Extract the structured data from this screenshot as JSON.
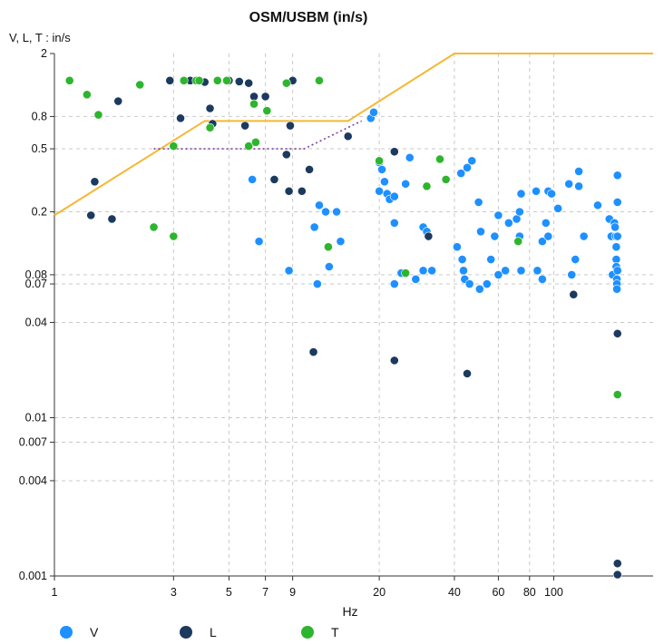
{
  "chart_data": {
    "type": "scatter",
    "title": "OSM/USBM (in/s)",
    "ylabel": "V, L, T : in/s",
    "xlabel": "Hz",
    "xscale": "log",
    "yscale": "log",
    "xlim": [
      1,
      250
    ],
    "ylim": [
      0.001,
      2
    ],
    "x_ticks": [
      1,
      3,
      5,
      7,
      9,
      20,
      40,
      60,
      80,
      100
    ],
    "x_tick_labels": [
      "1",
      "3",
      "5",
      "7",
      "9",
      "20",
      "40",
      "60",
      "80",
      "100"
    ],
    "y_ticks": [
      2,
      0.8,
      0.5,
      0.2,
      0.08,
      0.07,
      0.04,
      0.01,
      0.007,
      0.004,
      0.001
    ],
    "y_tick_labels": [
      "2",
      "0.8",
      "0.5",
      "0.2",
      "0.08",
      "0.07",
      "0.04",
      "0.01",
      "0.007",
      "0.004",
      "0.001"
    ],
    "grid": true,
    "legend_position": "bottom-left",
    "colors": {
      "V": "#1e90ff",
      "L": "#1c3a5e",
      "T": "#2db52d",
      "limit": "#f7b733",
      "limit_alt": "#7a3fa0"
    },
    "limit_line": {
      "name": "",
      "x": [
        1,
        4,
        15,
        40,
        250
      ],
      "y": [
        0.19,
        0.75,
        0.75,
        2.0,
        2.0
      ]
    },
    "limit_line_alt": {
      "name": "",
      "style": "dotted",
      "x": [
        2.5,
        10,
        17
      ],
      "y": [
        0.5,
        0.5,
        0.75
      ]
    },
    "series": [
      {
        "name": "V",
        "points": [
          [
            6.2,
            0.32
          ],
          [
            6.6,
            0.13
          ],
          [
            8.7,
            0.085
          ],
          [
            11.5,
            0.22
          ],
          [
            11.3,
            0.07
          ],
          [
            11.0,
            0.16
          ],
          [
            12.2,
            0.2
          ],
          [
            12.6,
            0.09
          ],
          [
            13.5,
            0.2
          ],
          [
            14.0,
            0.13
          ],
          [
            18.5,
            0.78
          ],
          [
            19.0,
            0.85
          ],
          [
            20.0,
            0.27
          ],
          [
            20.0,
            0.41
          ],
          [
            20.5,
            0.37
          ],
          [
            21.0,
            0.31
          ],
          [
            21.5,
            0.26
          ],
          [
            22.0,
            0.24
          ],
          [
            23.0,
            0.25
          ],
          [
            23.0,
            0.17
          ],
          [
            23.0,
            0.07
          ],
          [
            24.5,
            0.082
          ],
          [
            25.5,
            0.3
          ],
          [
            26.5,
            0.44
          ],
          [
            28.0,
            0.075
          ],
          [
            30.0,
            0.16
          ],
          [
            30.0,
            0.085
          ],
          [
            31.0,
            0.15
          ],
          [
            32.5,
            0.085
          ],
          [
            41.0,
            0.12
          ],
          [
            42.5,
            0.35
          ],
          [
            43.0,
            0.1
          ],
          [
            43.5,
            0.085
          ],
          [
            44.0,
            0.075
          ],
          [
            45.0,
            0.38
          ],
          [
            46.0,
            0.07
          ],
          [
            47.0,
            0.42
          ],
          [
            50.5,
            0.065
          ],
          [
            50.0,
            0.23
          ],
          [
            51.0,
            0.15
          ],
          [
            54.0,
            0.07
          ],
          [
            56.0,
            0.1
          ],
          [
            58.0,
            0.14
          ],
          [
            60.0,
            0.19
          ],
          [
            60.0,
            0.08
          ],
          [
            64.0,
            0.085
          ],
          [
            66.0,
            0.17
          ],
          [
            71.0,
            0.18
          ],
          [
            73.0,
            0.2
          ],
          [
            73.0,
            0.14
          ],
          [
            74.0,
            0.26
          ],
          [
            74.0,
            0.085
          ],
          [
            85.0,
            0.27
          ],
          [
            86.0,
            0.085
          ],
          [
            90.0,
            0.13
          ],
          [
            90.0,
            0.075
          ],
          [
            93.0,
            0.17
          ],
          [
            95.0,
            0.14
          ],
          [
            95.0,
            0.27
          ],
          [
            98.0,
            0.26
          ],
          [
            104.0,
            0.21
          ],
          [
            115.0,
            0.3
          ],
          [
            118.0,
            0.08
          ],
          [
            122.0,
            0.1
          ],
          [
            126.0,
            0.29
          ],
          [
            126.0,
            0.36
          ],
          [
            132.0,
            0.14
          ],
          [
            150.0,
            0.22
          ],
          [
            167.0,
            0.18
          ],
          [
            170.0,
            0.14
          ],
          [
            172.0,
            0.08
          ],
          [
            175.0,
            0.17
          ],
          [
            176.0,
            0.16
          ],
          [
            177.0,
            0.14
          ],
          [
            178.0,
            0.12
          ],
          [
            178.0,
            0.1
          ],
          [
            178.0,
            0.09
          ],
          [
            179.0,
            0.075
          ],
          [
            179.0,
            0.07
          ],
          [
            179.0,
            0.065
          ],
          [
            180.0,
            0.34
          ],
          [
            180.0,
            0.23
          ],
          [
            180.0,
            0.14
          ],
          [
            180.0,
            0.085
          ]
        ]
      },
      {
        "name": "L",
        "points": [
          [
            1.4,
            0.19
          ],
          [
            1.45,
            0.31
          ],
          [
            1.7,
            0.18
          ],
          [
            1.8,
            1.0
          ],
          [
            2.9,
            1.35
          ],
          [
            3.2,
            0.78
          ],
          [
            3.5,
            1.35
          ],
          [
            4.0,
            1.32
          ],
          [
            4.2,
            0.9
          ],
          [
            4.3,
            0.72
          ],
          [
            5.0,
            1.35
          ],
          [
            5.5,
            1.33
          ],
          [
            5.8,
            0.7
          ],
          [
            6.0,
            1.3
          ],
          [
            6.3,
            1.07
          ],
          [
            7.0,
            1.07
          ],
          [
            7.6,
            0.32
          ],
          [
            8.5,
            0.46
          ],
          [
            8.7,
            0.27
          ],
          [
            8.8,
            0.7
          ],
          [
            9.0,
            1.35
          ],
          [
            9.8,
            0.27
          ],
          [
            10.5,
            0.37
          ],
          [
            10.9,
            0.026
          ],
          [
            15.0,
            0.6
          ],
          [
            23.0,
            0.48
          ],
          [
            23.0,
            0.023
          ],
          [
            31.5,
            0.14
          ],
          [
            45.0,
            0.019
          ],
          [
            120.0,
            0.06
          ],
          [
            180.0,
            0.034
          ],
          [
            180.0,
            0.0012
          ],
          [
            180.0,
            0.00102
          ]
        ]
      },
      {
        "name": "T",
        "points": [
          [
            1.15,
            1.35
          ],
          [
            1.35,
            1.1
          ],
          [
            1.5,
            0.82
          ],
          [
            2.2,
            1.27
          ],
          [
            2.5,
            0.16
          ],
          [
            3.0,
            0.52
          ],
          [
            3.0,
            0.14
          ],
          [
            3.3,
            1.35
          ],
          [
            3.7,
            1.35
          ],
          [
            3.8,
            1.35
          ],
          [
            4.2,
            0.68
          ],
          [
            4.5,
            1.35
          ],
          [
            4.9,
            1.35
          ],
          [
            6.0,
            0.52
          ],
          [
            6.3,
            0.96
          ],
          [
            6.4,
            0.55
          ],
          [
            7.1,
            0.87
          ],
          [
            8.5,
            1.3
          ],
          [
            11.5,
            1.35
          ],
          [
            12.5,
            0.12
          ],
          [
            20.0,
            0.42
          ],
          [
            25.5,
            0.082
          ],
          [
            31.0,
            0.29
          ],
          [
            35.0,
            0.43
          ],
          [
            37.0,
            0.32
          ],
          [
            72.0,
            0.13
          ],
          [
            180.0,
            0.014
          ]
        ]
      }
    ]
  }
}
